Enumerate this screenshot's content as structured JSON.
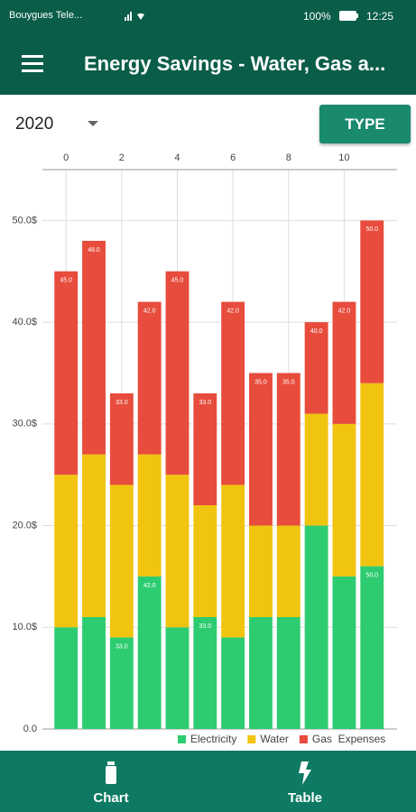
{
  "status_bar": {
    "carrier": "Bouygues Tele...",
    "battery": "100%",
    "time": "12:25"
  },
  "app_bar": {
    "title": "Energy Savings - Water, Gas a..."
  },
  "controls": {
    "year": "2020",
    "type_button": "TYPE"
  },
  "chart_data": {
    "type": "bar",
    "stacked": true,
    "x": [
      0,
      1,
      2,
      3,
      4,
      5,
      6,
      7,
      8,
      9,
      10,
      11
    ],
    "xlim": [
      -0.85,
      11.9
    ],
    "xticks": [
      0,
      2,
      4,
      6,
      8,
      10
    ],
    "ylim": [
      0,
      55
    ],
    "yticks": [
      {
        "value": 0,
        "label": "0.0"
      },
      {
        "value": 10,
        "label": "10.0$"
      },
      {
        "value": 20,
        "label": "20.0$"
      },
      {
        "value": 30,
        "label": "30.0$"
      },
      {
        "value": 40,
        "label": "40.0$"
      },
      {
        "value": 50,
        "label": "50.0$"
      }
    ],
    "grid": true,
    "legend": "bottom-right",
    "series": [
      {
        "name": "Electricity",
        "color": "#2ecc71",
        "values": [
          10,
          11,
          9,
          15,
          10,
          11,
          9,
          11,
          11,
          20,
          15,
          16
        ]
      },
      {
        "name": "Water",
        "color": "#f1c40f",
        "values": [
          15,
          16,
          15,
          12,
          15,
          11,
          15,
          9,
          9,
          11,
          15,
          18
        ]
      },
      {
        "name": "Gas  Expenses",
        "color": "#e74c3c",
        "values": [
          20,
          21,
          9,
          15,
          20,
          11,
          18,
          15,
          15,
          9,
          12,
          16
        ]
      }
    ],
    "total_labels": [
      "45.0",
      "48.0",
      "33.0",
      "42.0",
      "45.0",
      "33.0",
      "42.0",
      "35.0",
      "35.0",
      "40.0",
      "42.0",
      "50.0"
    ],
    "inner_labels": [
      null,
      null,
      "33.0",
      "42.0",
      null,
      "33.0",
      null,
      null,
      null,
      null,
      null,
      "50.0"
    ]
  },
  "bottom_nav": {
    "items": [
      "Chart",
      "Table"
    ]
  }
}
